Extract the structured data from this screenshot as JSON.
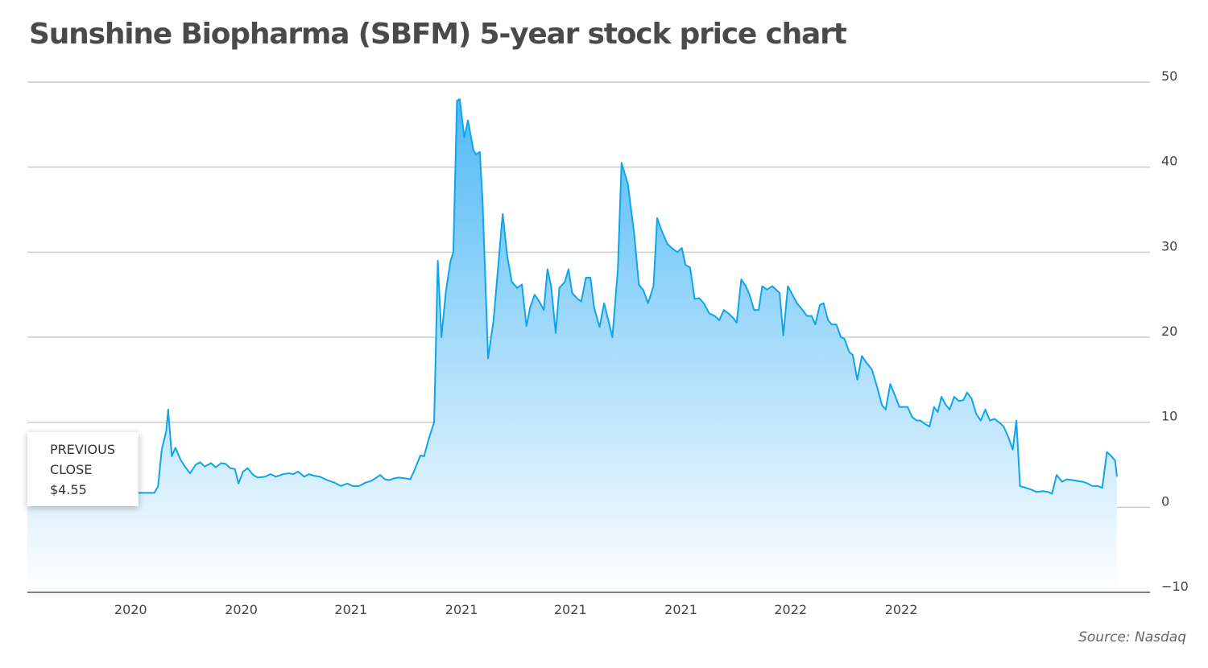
{
  "title": "Sunshine Biopharma (SBFM) 5-year stock price chart",
  "source": "Source: Nasdaq",
  "callout": {
    "label": "PREVIOUS CLOSE",
    "value": "$4.55"
  },
  "colors": {
    "line": "#0ea5ec",
    "fill_top": "#4fb9f7",
    "fill_bottom": "#ffffff",
    "grid": "#cccccc",
    "axis": "#555555"
  },
  "chart_data": {
    "type": "area",
    "title": "Sunshine Biopharma (SBFM) 5-year stock price chart",
    "xlabel": "",
    "ylabel": "",
    "ylim": [
      -10,
      50
    ],
    "yticks": [
      -10,
      0,
      10,
      20,
      30,
      40,
      50
    ],
    "y_axis_position": "right",
    "grid": true,
    "xlim": [
      0,
      100
    ],
    "xticks": [
      {
        "x": 11.3,
        "label": "2020"
      },
      {
        "x": 23.4,
        "label": "2020"
      },
      {
        "x": 35.4,
        "label": "2021"
      },
      {
        "x": 47.5,
        "label": "2021"
      },
      {
        "x": 59.4,
        "label": "2021"
      },
      {
        "x": 71.5,
        "label": "2021"
      },
      {
        "x": 83.5,
        "label": "2022"
      },
      {
        "x": 95.6,
        "label": "2022"
      }
    ],
    "series": [
      {
        "points": [
          [
            0,
            1.5
          ],
          [
            10.1,
            1.3
          ],
          [
            10.8,
            1.8
          ],
          [
            11.3,
            2.2
          ],
          [
            11.6,
            1.9
          ],
          [
            12.2,
            1.7
          ],
          [
            13.2,
            1.7
          ],
          [
            13.9,
            1.7
          ],
          [
            14.3,
            2.5
          ],
          [
            14.7,
            6.8
          ],
          [
            15.2,
            9.0
          ],
          [
            15.4,
            11.5
          ],
          [
            15.8,
            6.0
          ],
          [
            16.2,
            7.0
          ],
          [
            16.8,
            5.5
          ],
          [
            17.3,
            4.7
          ],
          [
            17.8,
            4.0
          ],
          [
            18.4,
            5.0
          ],
          [
            18.9,
            5.3
          ],
          [
            19.4,
            4.8
          ],
          [
            20.1,
            5.2
          ],
          [
            20.6,
            4.7
          ],
          [
            21.2,
            5.2
          ],
          [
            21.7,
            5.1
          ],
          [
            22.2,
            4.6
          ],
          [
            22.7,
            4.5
          ],
          [
            23.1,
            2.8
          ],
          [
            23.6,
            4.2
          ],
          [
            24.1,
            4.6
          ],
          [
            24.7,
            3.8
          ],
          [
            25.2,
            3.5
          ],
          [
            26.0,
            3.6
          ],
          [
            26.6,
            3.9
          ],
          [
            27.2,
            3.6
          ],
          [
            28.0,
            3.9
          ],
          [
            28.6,
            4.0
          ],
          [
            29.1,
            3.9
          ],
          [
            29.6,
            4.2
          ],
          [
            30.3,
            3.6
          ],
          [
            30.8,
            3.9
          ],
          [
            31.4,
            3.7
          ],
          [
            32.0,
            3.6
          ],
          [
            32.8,
            3.2
          ],
          [
            33.6,
            2.9
          ],
          [
            34.3,
            2.5
          ],
          [
            35.0,
            2.8
          ],
          [
            35.6,
            2.5
          ],
          [
            36.3,
            2.5
          ],
          [
            37.0,
            2.9
          ],
          [
            37.6,
            3.1
          ],
          [
            38.2,
            3.5
          ],
          [
            38.6,
            3.8
          ],
          [
            39.1,
            3.3
          ],
          [
            39.6,
            3.2
          ],
          [
            40.1,
            3.4
          ],
          [
            40.6,
            3.5
          ],
          [
            41.4,
            3.4
          ],
          [
            41.9,
            3.3
          ],
          [
            42.4,
            4.5
          ],
          [
            43.0,
            6.1
          ],
          [
            43.4,
            6.0
          ],
          [
            43.9,
            8.0
          ],
          [
            44.5,
            10.0
          ],
          [
            44.9,
            29.0
          ],
          [
            45.3,
            20.0
          ],
          [
            45.8,
            25.5
          ],
          [
            46.3,
            29.0
          ],
          [
            46.6,
            30.0
          ],
          [
            47.0,
            47.8
          ],
          [
            47.3,
            48.0
          ],
          [
            47.8,
            43.5
          ],
          [
            48.2,
            45.5
          ],
          [
            48.8,
            42.0
          ],
          [
            49.1,
            41.5
          ],
          [
            49.5,
            41.8
          ],
          [
            49.8,
            36.0
          ],
          [
            50.4,
            17.5
          ],
          [
            51.0,
            22.0
          ],
          [
            51.6,
            29.5
          ],
          [
            52.0,
            34.5
          ],
          [
            52.5,
            29.5
          ],
          [
            53.0,
            26.5
          ],
          [
            53.6,
            25.8
          ],
          [
            54.1,
            26.2
          ],
          [
            54.6,
            21.3
          ],
          [
            55.0,
            23.5
          ],
          [
            55.5,
            25.0
          ],
          [
            56.0,
            24.2
          ],
          [
            56.5,
            23.2
          ],
          [
            56.9,
            28.0
          ],
          [
            57.3,
            26.0
          ],
          [
            57.8,
            20.5
          ],
          [
            58.2,
            25.8
          ],
          [
            58.8,
            26.5
          ],
          [
            59.2,
            28.0
          ],
          [
            59.6,
            25.2
          ],
          [
            60.2,
            24.5
          ],
          [
            60.6,
            24.2
          ],
          [
            61.1,
            27.0
          ],
          [
            61.6,
            27.0
          ],
          [
            62.0,
            23.5
          ],
          [
            62.6,
            21.2
          ],
          [
            63.1,
            24.0
          ],
          [
            63.6,
            21.8
          ],
          [
            64.0,
            20.0
          ],
          [
            64.6,
            28.0
          ],
          [
            65.0,
            40.5
          ],
          [
            65.7,
            38.0
          ],
          [
            66.4,
            32.0
          ],
          [
            66.9,
            26.2
          ],
          [
            67.4,
            25.5
          ],
          [
            67.9,
            24.0
          ],
          [
            68.5,
            26.0
          ],
          [
            68.9,
            34.0
          ],
          [
            69.4,
            32.5
          ],
          [
            70.0,
            31.0
          ],
          [
            70.5,
            30.5
          ],
          [
            71.1,
            30.0
          ],
          [
            71.6,
            30.5
          ],
          [
            72.0,
            28.5
          ],
          [
            72.5,
            28.2
          ],
          [
            73.0,
            24.5
          ],
          [
            73.5,
            24.6
          ],
          [
            74.0,
            24.0
          ],
          [
            74.6,
            22.8
          ],
          [
            75.2,
            22.5
          ],
          [
            75.7,
            22.0
          ],
          [
            76.2,
            23.2
          ],
          [
            76.7,
            22.8
          ],
          [
            77.2,
            22.3
          ],
          [
            77.6,
            21.7
          ],
          [
            78.1,
            26.8
          ],
          [
            78.6,
            26.0
          ],
          [
            79.0,
            25.0
          ],
          [
            79.5,
            23.2
          ],
          [
            80.0,
            23.2
          ],
          [
            80.4,
            26.0
          ],
          [
            80.9,
            25.6
          ],
          [
            81.5,
            26.0
          ],
          [
            82.0,
            25.5
          ],
          [
            82.3,
            25.2
          ],
          [
            82.7,
            20.2
          ],
          [
            83.2,
            26.0
          ],
          [
            83.7,
            25.0
          ],
          [
            84.2,
            24.0
          ],
          [
            84.8,
            23.2
          ],
          [
            85.3,
            22.5
          ],
          [
            85.8,
            22.5
          ],
          [
            86.2,
            21.5
          ],
          [
            86.7,
            23.8
          ],
          [
            87.1,
            24.0
          ],
          [
            87.6,
            22.0
          ],
          [
            88.0,
            21.5
          ],
          [
            88.5,
            21.5
          ],
          [
            89.0,
            20.0
          ],
          [
            89.4,
            19.8
          ],
          [
            89.9,
            18.3
          ],
          [
            90.3,
            17.9
          ],
          [
            90.8,
            15.0
          ],
          [
            91.3,
            17.8
          ],
          [
            91.8,
            17.0
          ],
          [
            92.4,
            16.2
          ],
          [
            93.0,
            14.0
          ],
          [
            93.5,
            12.0
          ],
          [
            93.9,
            11.5
          ],
          [
            94.4,
            14.5
          ],
          [
            94.9,
            13.2
          ],
          [
            95.4,
            11.8
          ],
          [
            95.9,
            11.8
          ],
          [
            96.3,
            11.8
          ],
          [
            96.8,
            10.6
          ],
          [
            97.3,
            10.2
          ],
          [
            97.7,
            10.2
          ],
          [
            98.2,
            9.8
          ],
          [
            98.7,
            9.5
          ],
          [
            99.2,
            11.8
          ],
          [
            99.6,
            11.2
          ],
          [
            100.0,
            13.0
          ]
        ]
      }
    ],
    "series_tail": [
      [
        100.0,
        13.0
      ],
      [
        100.5,
        12.0
      ],
      [
        100.9,
        11.5
      ],
      [
        101.4,
        13.0
      ],
      [
        101.9,
        12.5
      ],
      [
        102.4,
        12.6
      ],
      [
        102.8,
        13.5
      ],
      [
        103.3,
        12.8
      ],
      [
        103.8,
        11.0
      ],
      [
        104.3,
        10.2
      ],
      [
        104.8,
        11.5
      ],
      [
        105.3,
        10.2
      ],
      [
        105.8,
        10.4
      ],
      [
        106.3,
        10.0
      ],
      [
        106.8,
        9.5
      ],
      [
        107.3,
        8.3
      ],
      [
        107.8,
        6.8
      ],
      [
        108.2,
        10.2
      ],
      [
        108.6,
        2.5
      ],
      [
        109.2,
        2.3
      ],
      [
        109.8,
        2.1
      ],
      [
        110.4,
        1.8
      ],
      [
        111.1,
        1.9
      ],
      [
        111.7,
        1.8
      ],
      [
        112.1,
        1.6
      ],
      [
        112.6,
        3.8
      ],
      [
        113.2,
        3.0
      ],
      [
        113.7,
        3.3
      ],
      [
        114.3,
        3.2
      ],
      [
        114.9,
        3.1
      ],
      [
        115.5,
        3.0
      ],
      [
        116.0,
        2.8
      ],
      [
        116.5,
        2.5
      ],
      [
        117.1,
        2.5
      ],
      [
        117.6,
        2.3
      ],
      [
        118.1,
        6.5
      ],
      [
        118.6,
        6.0
      ],
      [
        119.0,
        5.5
      ],
      [
        119.2,
        3.6
      ]
    ]
  }
}
